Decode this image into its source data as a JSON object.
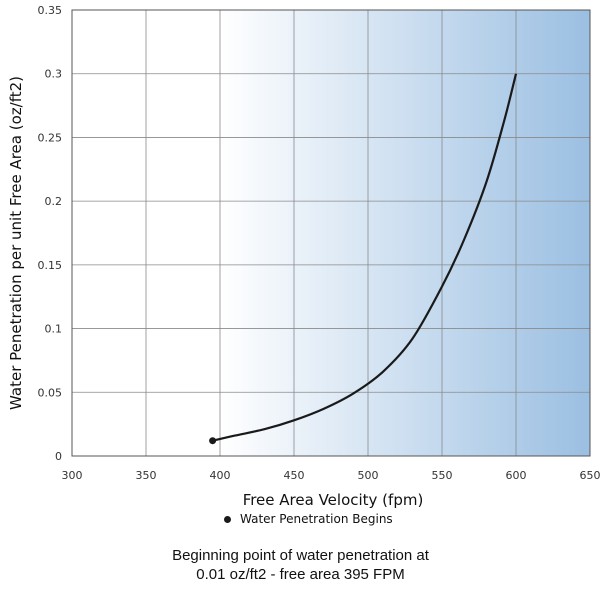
{
  "chart_data": {
    "type": "line",
    "xlabel": "Free Area Velocity (fpm)",
    "ylabel": "Water Penetration per unit Free Area (oz/ft2)",
    "xlim": [
      300,
      650
    ],
    "ylim": [
      0,
      0.35
    ],
    "x_ticks": [
      300,
      350,
      400,
      450,
      500,
      550,
      600,
      650
    ],
    "y_ticks": [
      0,
      0.05,
      0.1,
      0.15,
      0.2,
      0.25,
      0.3,
      0.35
    ],
    "x_tick_labels": [
      "300",
      "350",
      "400",
      "450",
      "500",
      "550",
      "600",
      "650"
    ],
    "y_tick_labels": [
      "0",
      "0.05",
      "0.1",
      "0.15",
      "0.2",
      "0.25",
      "0.3",
      "0.35"
    ],
    "grid": true,
    "background_gradient": {
      "from_x": 400,
      "to_x": 650,
      "from_color": "#ffffff",
      "to_color": "#9bbfe2"
    },
    "series": [
      {
        "color": "#1a1a1a",
        "x": [
          395,
          410,
          430,
          450,
          470,
          490,
          510,
          530,
          550,
          565,
          580,
          592,
          600
        ],
        "y": [
          0.012,
          0.016,
          0.021,
          0.028,
          0.037,
          0.049,
          0.066,
          0.092,
          0.133,
          0.17,
          0.215,
          0.263,
          0.3
        ]
      }
    ],
    "marker": {
      "x": 395,
      "y": 0.012
    },
    "legend": {
      "label": "Water Penetration Begins",
      "position": "bottom"
    },
    "caption": [
      "Beginning point of water penetration at",
      "0.01 oz/ft2 - free area 395 FPM"
    ]
  }
}
